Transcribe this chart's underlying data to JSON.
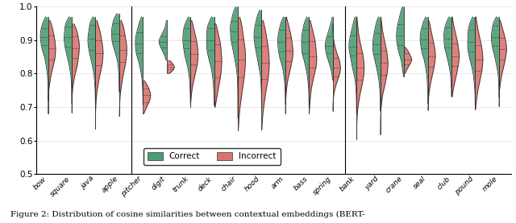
{
  "words": [
    "bow",
    "square",
    "java",
    "apple",
    "pitcher",
    "digit",
    "trunk",
    "deck",
    "chair",
    "hood",
    "arm",
    "bass",
    "spring",
    "bank",
    "yard",
    "crane",
    "seal",
    "club",
    "pound",
    "mole"
  ],
  "correct_data": {
    "bow": {
      "mean": 0.91,
      "std": 0.05,
      "min": 0.67,
      "max": 0.97,
      "q1": 0.885,
      "q3": 0.935
    },
    "square": {
      "mean": 0.91,
      "std": 0.055,
      "min": 0.62,
      "max": 0.97,
      "q1": 0.88,
      "q3": 0.94
    },
    "java": {
      "mean": 0.905,
      "std": 0.06,
      "min": 0.58,
      "max": 0.97,
      "q1": 0.87,
      "q3": 0.945
    },
    "apple": {
      "mean": 0.92,
      "std": 0.048,
      "min": 0.65,
      "max": 0.98,
      "q1": 0.897,
      "q3": 0.95
    },
    "pitcher": {
      "mean": 0.89,
      "std": 0.052,
      "min": 0.7,
      "max": 0.97,
      "q1": 0.862,
      "q3": 0.924
    },
    "digit": {
      "mean": 0.895,
      "std": 0.025,
      "min": 0.84,
      "max": 0.96,
      "q1": 0.878,
      "q3": 0.912
    },
    "trunk": {
      "mean": 0.9,
      "std": 0.055,
      "min": 0.7,
      "max": 0.97,
      "q1": 0.875,
      "q3": 0.935
    },
    "deck": {
      "mean": 0.9,
      "std": 0.06,
      "min": 0.65,
      "max": 0.97,
      "q1": 0.87,
      "q3": 0.935
    },
    "chair": {
      "mean": 0.925,
      "std": 0.06,
      "min": 0.65,
      "max": 1.0,
      "q1": 0.895,
      "q3": 0.958
    },
    "hood": {
      "mean": 0.91,
      "std": 0.06,
      "min": 0.65,
      "max": 0.99,
      "q1": 0.878,
      "q3": 0.946
    },
    "arm": {
      "mean": 0.895,
      "std": 0.055,
      "min": 0.67,
      "max": 0.97,
      "q1": 0.865,
      "q3": 0.93
    },
    "bass": {
      "mean": 0.895,
      "std": 0.058,
      "min": 0.68,
      "max": 0.97,
      "q1": 0.862,
      "q3": 0.932
    },
    "spring": {
      "mean": 0.882,
      "std": 0.04,
      "min": 0.78,
      "max": 0.97,
      "q1": 0.86,
      "q3": 0.912
    },
    "bank": {
      "mean": 0.88,
      "std": 0.055,
      "min": 0.57,
      "max": 0.97,
      "q1": 0.853,
      "q3": 0.913
    },
    "yard": {
      "mean": 0.887,
      "std": 0.058,
      "min": 0.68,
      "max": 0.97,
      "q1": 0.858,
      "q3": 0.922
    },
    "crane": {
      "mean": 0.915,
      "std": 0.055,
      "min": 0.79,
      "max": 1.0,
      "q1": 0.885,
      "q3": 0.948
    },
    "seal": {
      "mean": 0.902,
      "std": 0.052,
      "min": 0.7,
      "max": 0.97,
      "q1": 0.876,
      "q3": 0.936
    },
    "club": {
      "mean": 0.905,
      "std": 0.052,
      "min": 0.73,
      "max": 0.97,
      "q1": 0.879,
      "q3": 0.938
    },
    "pound": {
      "mean": 0.896,
      "std": 0.058,
      "min": 0.69,
      "max": 0.97,
      "q1": 0.866,
      "q3": 0.932
    },
    "mole": {
      "mean": 0.91,
      "std": 0.052,
      "min": 0.71,
      "max": 0.97,
      "q1": 0.882,
      "q3": 0.942
    }
  },
  "incorrect_data": {
    "bow": {
      "mean": 0.875,
      "std": 0.06,
      "min": 0.68,
      "max": 0.96,
      "q1": 0.843,
      "q3": 0.915
    },
    "square": {
      "mean": 0.875,
      "std": 0.058,
      "min": 0.68,
      "max": 0.95,
      "q1": 0.847,
      "q3": 0.912
    },
    "java": {
      "mean": 0.86,
      "std": 0.062,
      "min": 0.63,
      "max": 0.96,
      "q1": 0.825,
      "q3": 0.9
    },
    "apple": {
      "mean": 0.87,
      "std": 0.068,
      "min": 0.67,
      "max": 0.96,
      "q1": 0.835,
      "q3": 0.915
    },
    "pitcher": {
      "mean": 0.735,
      "std": 0.028,
      "min": 0.68,
      "max": 0.78,
      "q1": 0.715,
      "q3": 0.755
    },
    "digit": {
      "mean": 0.82,
      "std": 0.015,
      "min": 0.8,
      "max": 0.84,
      "q1": 0.812,
      "q3": 0.828
    },
    "trunk": {
      "mean": 0.858,
      "std": 0.058,
      "min": 0.7,
      "max": 0.96,
      "q1": 0.828,
      "q3": 0.898
    },
    "deck": {
      "mean": 0.838,
      "std": 0.075,
      "min": 0.7,
      "max": 0.95,
      "q1": 0.788,
      "q3": 0.888
    },
    "chair": {
      "mean": 0.842,
      "std": 0.088,
      "min": 0.63,
      "max": 0.97,
      "q1": 0.788,
      "q3": 0.902
    },
    "hood": {
      "mean": 0.832,
      "std": 0.078,
      "min": 0.63,
      "max": 0.96,
      "q1": 0.783,
      "q3": 0.884
    },
    "arm": {
      "mean": 0.868,
      "std": 0.058,
      "min": 0.68,
      "max": 0.97,
      "q1": 0.838,
      "q3": 0.908
    },
    "bass": {
      "mean": 0.852,
      "std": 0.062,
      "min": 0.68,
      "max": 0.96,
      "q1": 0.818,
      "q3": 0.898
    },
    "spring": {
      "mean": 0.818,
      "std": 0.038,
      "min": 0.68,
      "max": 0.96,
      "q1": 0.792,
      "q3": 0.846
    },
    "bank": {
      "mean": 0.818,
      "std": 0.062,
      "min": 0.55,
      "max": 0.97,
      "q1": 0.782,
      "q3": 0.862
    },
    "yard": {
      "mean": 0.832,
      "std": 0.062,
      "min": 0.55,
      "max": 0.97,
      "q1": 0.795,
      "q3": 0.868
    },
    "crane": {
      "mean": 0.843,
      "std": 0.022,
      "min": 0.8,
      "max": 0.88,
      "q1": 0.827,
      "q3": 0.86
    },
    "seal": {
      "mean": 0.852,
      "std": 0.058,
      "min": 0.69,
      "max": 0.96,
      "q1": 0.82,
      "q3": 0.892
    },
    "club": {
      "mean": 0.852,
      "std": 0.058,
      "min": 0.73,
      "max": 0.97,
      "q1": 0.822,
      "q3": 0.89
    },
    "pound": {
      "mean": 0.842,
      "std": 0.062,
      "min": 0.69,
      "max": 0.97,
      "q1": 0.808,
      "q3": 0.885
    },
    "mole": {
      "mean": 0.872,
      "std": 0.053,
      "min": 0.7,
      "max": 0.96,
      "q1": 0.842,
      "q3": 0.908
    }
  },
  "color_correct": "#4a9e72",
  "color_incorrect": "#d9736e",
  "background_color": "#ffffff",
  "ylim": [
    0.5,
    1.0
  ],
  "yticks": [
    0.5,
    0.6,
    0.7,
    0.8,
    0.9,
    1.0
  ],
  "caption": "Figure 2: Distribution of cosine similarities between contextual embeddings (BERT-",
  "separator_before": [
    "pitcher",
    "bank"
  ],
  "violin_width": 0.32,
  "bw_method": 0.25
}
